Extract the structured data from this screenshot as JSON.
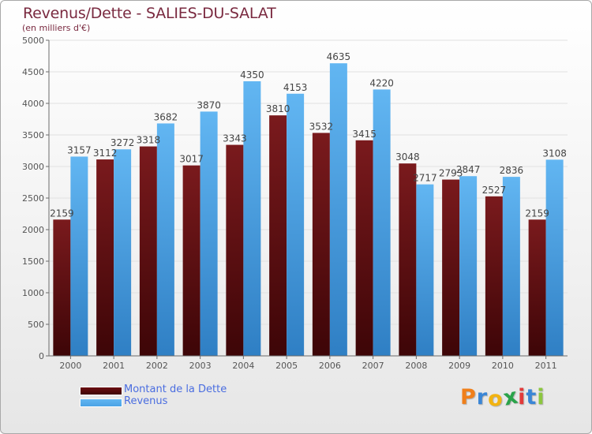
{
  "header": {
    "title": "Revenus/Dette - SALIES-DU-SALAT",
    "subtitle": "(en milliers d'€)"
  },
  "legend": {
    "items": [
      {
        "label": "Montant de la Dette",
        "color": "#6b0f12"
      },
      {
        "label": "Revenus",
        "color": "#4aa3e6"
      }
    ]
  },
  "brand": {
    "letters": [
      "P",
      "r",
      "o",
      "x",
      "i",
      "t",
      "i"
    ],
    "colors": [
      "#f07f1a",
      "#3a86d6",
      "#f2b311",
      "#2aa34a",
      "#e23a3a",
      "#3a86d6",
      "#8cc63f"
    ]
  },
  "colors": {
    "debt": "#6b0f12",
    "revenue": "#4aa3e6",
    "axis": "#6b6b6b",
    "grid": "#e1e1e1"
  },
  "chart_data": {
    "type": "bar",
    "title": "Revenus/Dette - SALIES-DU-SALAT",
    "subtitle": "(en milliers d'€)",
    "categories": [
      "2000",
      "2001",
      "2002",
      "2003",
      "2004",
      "2005",
      "2006",
      "2007",
      "2008",
      "2009",
      "2010",
      "2011"
    ],
    "series": [
      {
        "name": "Montant de la Dette",
        "values": [
          2159,
          3112,
          3318,
          3017,
          3343,
          3810,
          3532,
          3415,
          3048,
          2793,
          2527,
          2159
        ]
      },
      {
        "name": "Revenus",
        "values": [
          3157,
          3272,
          3682,
          3870,
          4350,
          4153,
          4635,
          4220,
          2717,
          2847,
          2836,
          3108
        ]
      }
    ],
    "ylim": [
      0,
      5000
    ],
    "yticks": [
      0,
      500,
      1000,
      1500,
      2000,
      2500,
      3000,
      3500,
      4000,
      4500,
      5000
    ],
    "grid": true,
    "legend_position": "bottom-left"
  }
}
